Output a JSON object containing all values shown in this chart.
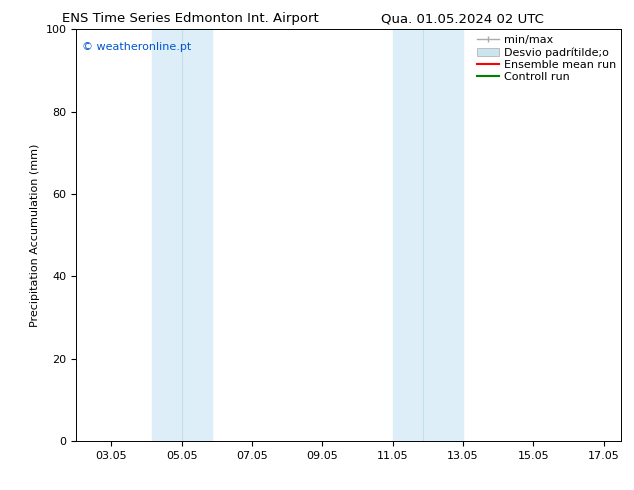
{
  "title_left": "ENS Time Series Edmonton Int. Airport",
  "title_right": "Qua. 01.05.2024 02 UTC",
  "ylabel": "Precipitation Accumulation (mm)",
  "xlim": [
    2.05,
    17.55
  ],
  "ylim": [
    0,
    100
  ],
  "xticks": [
    3.05,
    5.05,
    7.05,
    9.05,
    11.05,
    13.05,
    15.05,
    17.05
  ],
  "xtick_labels": [
    "03.05",
    "05.05",
    "07.05",
    "09.05",
    "11.05",
    "13.05",
    "15.05",
    "17.05"
  ],
  "yticks": [
    0,
    20,
    40,
    60,
    80,
    100
  ],
  "band1_x0": 4.2,
  "band1_mid": 5.05,
  "band1_x1": 5.9,
  "band2_x0": 11.05,
  "band2_mid": 11.9,
  "band2_x1": 13.05,
  "band_color": "#ddeef8",
  "band_line_color": "#c5dced",
  "watermark_text": "© weatheronline.pt",
  "watermark_color": "#0055cc",
  "legend_label_minmax": "min/max",
  "legend_label_desvio": "Desvio padrítilde;o",
  "legend_label_ensemble": "Ensemble mean run",
  "legend_label_control": "Controll run",
  "legend_color_minmax": "#aaaaaa",
  "legend_color_desvio": "#cce4f0",
  "legend_color_ensemble": "red",
  "legend_color_control": "green",
  "bg_color": "#ffffff",
  "font_size": 8,
  "title_font_size": 9.5
}
